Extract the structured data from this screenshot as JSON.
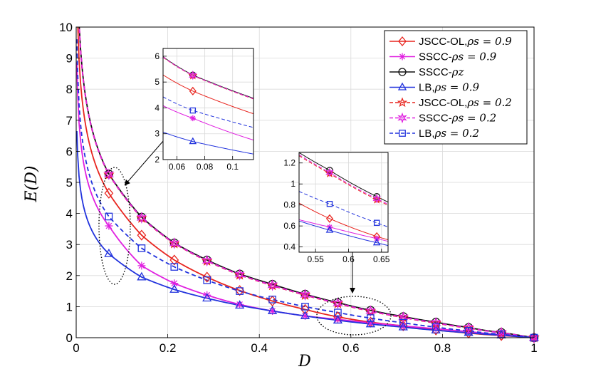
{
  "chart_data": {
    "type": "line",
    "title": "",
    "xlabel": "D",
    "ylabel": "E(D)",
    "xlim": [
      0,
      1
    ],
    "ylim": [
      0,
      10
    ],
    "xticks": [
      0,
      0.2,
      0.4,
      0.6,
      0.8,
      1
    ],
    "yticks": [
      0,
      1,
      2,
      3,
      4,
      5,
      6,
      7,
      8,
      9,
      10
    ],
    "xtick_labels": [
      "0",
      "0.2",
      "0.4",
      "0.6",
      "0.8",
      "1"
    ],
    "ytick_labels": [
      "0",
      "1",
      "2",
      "3",
      "4",
      "5",
      "6",
      "7",
      "8",
      "9",
      "10"
    ],
    "grid": true,
    "legend_position": "top-right",
    "marker_x": [
      0.0714,
      0.1429,
      0.2143,
      0.2857,
      0.3571,
      0.4286,
      0.5,
      0.5714,
      0.6429,
      0.7143,
      0.7857,
      0.8571,
      0.9286,
      1.0
    ],
    "series": [
      {
        "name": "JSCC-OL,ρs = 0.9",
        "legend_main": "JSCC-OL,",
        "legend_math": "ρs = 0.9",
        "color": "#e8251f",
        "dash": "solid",
        "marker": "diamond",
        "values": [
          4.65,
          3.3,
          2.5,
          1.95,
          1.52,
          1.18,
          0.91,
          0.67,
          0.5,
          0.38,
          0.25,
          0.15,
          0.07,
          0.0
        ]
      },
      {
        "name": "SSCC-ρs = 0.9",
        "legend_main": "SSCC-",
        "legend_math": "ρs = 0.9",
        "color": "#e020e0",
        "dash": "solid",
        "marker": "asterisk",
        "values": [
          3.6,
          2.32,
          1.75,
          1.37,
          1.07,
          0.86,
          0.7,
          0.59,
          0.48,
          0.38,
          0.29,
          0.2,
          0.1,
          0.0
        ]
      },
      {
        "name": "SSCC-ρz",
        "legend_main": "SSCC-",
        "legend_math": "ρz",
        "color": "#111111",
        "dash": "solid",
        "marker": "circle",
        "values": [
          5.27,
          3.88,
          3.05,
          2.5,
          2.05,
          1.72,
          1.4,
          1.13,
          0.88,
          0.68,
          0.5,
          0.33,
          0.17,
          0.0
        ]
      },
      {
        "name": "LB,ρs = 0.9",
        "legend_main": "LB,",
        "legend_math": "ρs = 0.9",
        "color": "#2233dd",
        "dash": "solid",
        "marker": "triangle",
        "values": [
          2.7,
          1.95,
          1.55,
          1.27,
          1.04,
          0.86,
          0.7,
          0.56,
          0.44,
          0.34,
          0.24,
          0.16,
          0.08,
          0.0
        ]
      },
      {
        "name": "JSCC-OL,ρs = 0.2",
        "legend_main": "JSCC-OL,",
        "legend_math": "ρs = 0.2",
        "color": "#e8251f",
        "dash": "dashed",
        "marker": "star",
        "values": [
          5.25,
          3.85,
          3.03,
          2.47,
          2.02,
          1.68,
          1.37,
          1.1,
          0.85,
          0.65,
          0.47,
          0.31,
          0.16,
          0.0
        ]
      },
      {
        "name": "SSCC-ρs = 0.2",
        "legend_main": "SSCC-",
        "legend_math": "ρs = 0.2",
        "color": "#e020e0",
        "dash": "dashed",
        "marker": "hexagram",
        "values": [
          5.26,
          3.86,
          3.04,
          2.48,
          2.03,
          1.69,
          1.38,
          1.11,
          0.86,
          0.66,
          0.48,
          0.32,
          0.16,
          0.0
        ]
      },
      {
        "name": "LB,ρs = 0.2",
        "legend_main": "LB,",
        "legend_math": "ρs = 0.2",
        "color": "#2233dd",
        "dash": "dashed",
        "marker": "square",
        "values": [
          3.9,
          2.88,
          2.28,
          1.85,
          1.5,
          1.23,
          1.0,
          0.81,
          0.63,
          0.48,
          0.34,
          0.22,
          0.11,
          0.0
        ]
      }
    ],
    "insets": [
      {
        "name": "inset-left",
        "xlim": [
          0.05,
          0.115
        ],
        "ylim": [
          2,
          6.3
        ],
        "xticks": [
          0.06,
          0.08,
          0.1
        ],
        "xtick_labels": [
          "0.06",
          "0.08",
          "0.1"
        ],
        "yticks": [
          2,
          3,
          4,
          5,
          6
        ],
        "ytick_labels": [
          "2",
          "3",
          "4",
          "5",
          "6"
        ],
        "marker_x": [
          0.0714
        ]
      },
      {
        "name": "inset-right",
        "xlim": [
          0.525,
          0.66
        ],
        "ylim": [
          0.35,
          1.3
        ],
        "xticks": [
          0.55,
          0.6,
          0.65
        ],
        "xtick_labels": [
          "0.55",
          "0.6",
          "0.65"
        ],
        "yticks": [
          0.4,
          0.6,
          0.8,
          1.0,
          1.2
        ],
        "ytick_labels": [
          "0.4",
          "0.6",
          "0.8",
          "1",
          "1.2"
        ],
        "marker_x": [
          0.5714,
          0.6429
        ]
      }
    ],
    "annotations": [
      {
        "name": "ellipse-left",
        "center": [
          0.082,
          4.0
        ],
        "note": "zoom region for left inset"
      },
      {
        "name": "ellipse-right",
        "center": [
          0.6,
          0.78
        ],
        "note": "zoom region for right inset"
      }
    ]
  }
}
